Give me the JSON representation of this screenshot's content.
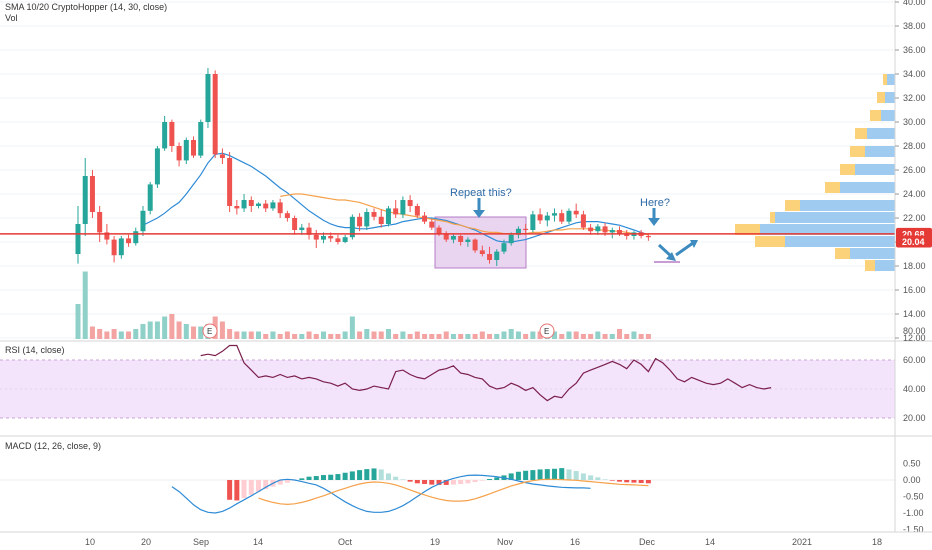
{
  "panes": {
    "price": {
      "title": "SMA 10/20 CryptoHopper (14, 30, close)",
      "subtitle": "Vol",
      "y_ticks": [
        "40.00",
        "38.00",
        "36.00",
        "34.00",
        "32.00",
        "30.00",
        "28.00",
        "26.00",
        "24.00",
        "22.00",
        "20.00",
        "18.00",
        "16.00",
        "14.00",
        "12.00"
      ],
      "price_tags": [
        "20.68",
        "20.04"
      ]
    },
    "rsi": {
      "title": "RSI (14, close)",
      "y_ticks": [
        "80.00",
        "60.00",
        "40.00",
        "20.00"
      ]
    },
    "macd": {
      "title": "MACD (12, 26, close, 9)",
      "y_ticks": [
        "0.50",
        "0.00",
        "-0.50",
        "-1.00",
        "-1.50"
      ]
    }
  },
  "x_ticks": [
    "10",
    "20",
    "Sep",
    "14",
    "Oct",
    "19",
    "Nov",
    "16",
    "Dec",
    "14",
    "2021",
    "18"
  ],
  "annotations": {
    "repeat": "Repeat this?",
    "here": "Here?",
    "earnings": "E"
  },
  "colors": {
    "up": "#26a69a",
    "down": "#ef5350",
    "sma_fast": "#2e8bd6",
    "sma_slow": "#f5a14a",
    "hline": "#e53935",
    "rsi": "#7b1f4c",
    "box": "#c37bd0",
    "arrow": "#3d8bbf"
  },
  "chart_data": [
    {
      "type": "candlestick",
      "title": "SMA 10/20 CryptoHopper (14, 30, close)",
      "ylim": [
        12,
        40
      ],
      "ohlc": [
        [
          19.0,
          23.0,
          18.2,
          21.5
        ],
        [
          21.5,
          27.0,
          20.5,
          25.5
        ],
        [
          25.5,
          26.0,
          22.0,
          22.5
        ],
        [
          22.5,
          23.0,
          20.0,
          20.8
        ],
        [
          20.8,
          21.5,
          19.8,
          20.2
        ],
        [
          20.2,
          20.5,
          18.3,
          18.9
        ],
        [
          18.9,
          20.5,
          18.6,
          20.3
        ],
        [
          20.3,
          20.6,
          19.6,
          19.9
        ],
        [
          19.9,
          21.2,
          19.7,
          20.9
        ],
        [
          20.9,
          23.0,
          20.5,
          22.6
        ],
        [
          22.6,
          25.0,
          22.3,
          24.8
        ],
        [
          24.8,
          28.0,
          24.5,
          27.8
        ],
        [
          27.8,
          30.5,
          27.6,
          30.0
        ],
        [
          30.0,
          30.2,
          27.5,
          28.0
        ],
        [
          28.0,
          28.3,
          26.3,
          26.8
        ],
        [
          26.8,
          28.7,
          26.5,
          28.5
        ],
        [
          28.5,
          28.8,
          27.0,
          27.2
        ],
        [
          27.2,
          30.2,
          27.0,
          30.0
        ],
        [
          30.0,
          34.5,
          29.5,
          34.0
        ],
        [
          34.0,
          34.3,
          27.0,
          27.3
        ],
        [
          27.3,
          27.8,
          26.5,
          27.0
        ],
        [
          27.0,
          27.5,
          22.5,
          23.0
        ],
        [
          23.0,
          23.5,
          22.3,
          22.8
        ],
        [
          22.8,
          24.0,
          22.5,
          23.5
        ],
        [
          23.5,
          23.8,
          22.5,
          23.0
        ],
        [
          23.0,
          23.3,
          22.8,
          23.2
        ],
        [
          23.2,
          23.5,
          22.5,
          22.8
        ],
        [
          22.8,
          23.5,
          22.6,
          23.3
        ],
        [
          23.3,
          23.6,
          22.0,
          22.4
        ],
        [
          22.4,
          22.6,
          21.7,
          22.0
        ],
        [
          22.0,
          22.2,
          20.6,
          21.0
        ],
        [
          21.0,
          21.5,
          20.6,
          21.2
        ],
        [
          21.2,
          21.6,
          20.2,
          20.6
        ],
        [
          20.6,
          21.0,
          19.5,
          20.2
        ],
        [
          20.2,
          20.8,
          19.9,
          20.5
        ],
        [
          20.5,
          20.8,
          20.0,
          20.3
        ],
        [
          20.3,
          20.6,
          19.8,
          20.0
        ],
        [
          20.0,
          20.6,
          19.9,
          20.4
        ],
        [
          20.4,
          22.3,
          20.2,
          22.1
        ],
        [
          22.1,
          22.4,
          20.9,
          21.3
        ],
        [
          21.3,
          22.8,
          21.0,
          22.5
        ],
        [
          22.5,
          22.8,
          21.8,
          22.1
        ],
        [
          22.1,
          22.7,
          21.2,
          21.5
        ],
        [
          21.5,
          23.0,
          21.3,
          22.8
        ],
        [
          22.8,
          23.5,
          22.0,
          22.3
        ],
        [
          22.3,
          23.8,
          22.0,
          23.5
        ],
        [
          23.5,
          23.9,
          22.5,
          23.0
        ],
        [
          23.0,
          23.2,
          22.0,
          22.2
        ],
        [
          22.2,
          22.5,
          21.5,
          21.7
        ],
        [
          21.7,
          21.9,
          21.0,
          21.2
        ],
        [
          21.2,
          21.4,
          20.5,
          20.7
        ],
        [
          20.7,
          20.9,
          20.0,
          20.2
        ],
        [
          20.2,
          20.7,
          19.9,
          20.5
        ],
        [
          20.5,
          20.6,
          19.7,
          20.0
        ],
        [
          20.0,
          20.4,
          19.6,
          20.2
        ],
        [
          20.2,
          20.3,
          19.1,
          19.3
        ],
        [
          19.3,
          19.7,
          18.8,
          19.0
        ],
        [
          19.0,
          19.6,
          18.2,
          18.5
        ],
        [
          18.5,
          19.4,
          18.0,
          19.2
        ],
        [
          19.2,
          20.2,
          19.0,
          19.9
        ],
        [
          19.9,
          20.8,
          19.7,
          20.6
        ],
        [
          20.6,
          21.3,
          20.3,
          21.1
        ],
        [
          21.1,
          21.5,
          20.6,
          21.0
        ],
        [
          21.0,
          22.6,
          20.8,
          22.3
        ],
        [
          22.3,
          22.8,
          21.5,
          21.8
        ],
        [
          21.8,
          22.5,
          21.3,
          22.2
        ],
        [
          22.2,
          22.8,
          21.7,
          22.4
        ],
        [
          22.4,
          22.7,
          21.5,
          21.7
        ],
        [
          21.7,
          22.8,
          21.5,
          22.6
        ],
        [
          22.6,
          23.2,
          22.0,
          22.3
        ],
        [
          22.3,
          22.6,
          21.0,
          21.2
        ],
        [
          21.2,
          21.5,
          20.6,
          20.9
        ],
        [
          20.9,
          21.5,
          20.6,
          21.3
        ],
        [
          21.3,
          21.6,
          20.5,
          20.8
        ],
        [
          20.8,
          21.2,
          20.3,
          21.0
        ],
        [
          21.0,
          21.3,
          20.5,
          20.7
        ],
        [
          20.7,
          21.0,
          20.2,
          20.5
        ],
        [
          20.5,
          20.9,
          20.2,
          20.8
        ],
        [
          20.8,
          21.0,
          20.3,
          20.5
        ],
        [
          20.5,
          20.7,
          20.1,
          20.4
        ]
      ],
      "volume": [
        14,
        27,
        5,
        4,
        3,
        4,
        3,
        3,
        4,
        6,
        7,
        7,
        9,
        10,
        7,
        6,
        5,
        5,
        6,
        9,
        7,
        4,
        3,
        3,
        3,
        3,
        2,
        3,
        2,
        3,
        2,
        2,
        3,
        2,
        3,
        2,
        2,
        3,
        9,
        3,
        4,
        3,
        3,
        4,
        2,
        3,
        2,
        3,
        2,
        2,
        2,
        3,
        2,
        2,
        2,
        2,
        3,
        2,
        2,
        3,
        4,
        3,
        2,
        3,
        3,
        4,
        3,
        2,
        3,
        3,
        2,
        2,
        3,
        2,
        2,
        4,
        2,
        3,
        2,
        2
      ],
      "series": [
        {
          "name": "",
          "values": [
            null,
            null,
            null,
            null,
            null,
            null,
            null,
            null,
            null,
            21.4,
            21.7,
            22.0,
            22.4,
            22.9,
            23.3,
            24.0,
            24.8,
            25.6,
            26.6,
            27.3,
            27.4,
            27.2,
            26.9,
            26.6,
            26.3,
            25.9,
            25.5,
            25.0,
            24.5,
            24.1,
            23.6,
            23.1,
            22.6,
            22.2,
            21.8,
            21.5,
            21.3,
            21.2,
            21.2,
            21.1,
            21.1,
            21.2,
            21.3,
            21.4,
            21.5,
            21.7,
            21.8,
            21.9,
            22.0,
            22.0,
            21.9,
            21.8,
            21.6,
            21.4,
            21.2,
            21.0,
            20.7,
            20.4,
            20.1,
            20.0,
            20.0,
            20.1,
            20.2,
            20.4,
            20.6,
            20.8,
            21.0,
            21.2,
            21.4,
            21.6,
            21.7,
            21.7,
            21.7,
            21.6,
            21.5,
            21.4,
            21.2,
            21.0,
            20.8,
            20.6
          ]
        },
        {
          "name": "",
          "values": [
            null,
            null,
            null,
            null,
            null,
            null,
            null,
            null,
            null,
            null,
            null,
            null,
            null,
            null,
            null,
            null,
            null,
            null,
            null,
            null,
            null,
            null,
            null,
            null,
            null,
            null,
            null,
            null,
            23.8,
            23.9,
            24.0,
            24.0,
            23.9,
            23.8,
            23.7,
            23.6,
            23.5,
            23.5,
            23.4,
            23.3,
            23.1,
            22.9,
            22.7,
            22.5,
            22.4,
            22.3,
            22.2,
            22.1,
            22.0,
            21.9,
            21.8,
            21.7,
            21.5,
            21.4,
            21.2,
            21.1,
            20.9,
            20.8,
            20.8,
            20.7,
            20.7,
            20.7,
            20.7,
            20.8,
            20.8,
            20.9,
            21.0,
            21.0,
            21.1,
            21.1,
            21.1,
            21.1,
            21.0,
            21.0,
            20.9,
            20.9,
            20.8,
            20.7,
            20.7,
            20.6
          ]
        }
      ],
      "hlines": [
        20.68,
        20.04
      ]
    },
    {
      "type": "line",
      "title": "RSI (14, close)",
      "ylim": [
        20,
        80
      ],
      "band": [
        30,
        70
      ],
      "x_start": 17,
      "series": [
        {
          "name": "",
          "values": [
            63,
            64,
            63,
            66,
            70,
            70,
            58,
            53,
            48,
            49,
            48,
            50,
            48,
            49,
            47,
            48,
            47,
            45,
            44,
            42,
            44,
            40,
            39,
            40,
            42,
            41,
            40,
            52,
            53,
            50,
            48,
            47,
            50,
            53,
            54,
            56,
            51,
            50,
            48,
            47,
            42,
            40,
            41,
            44,
            42,
            39,
            41,
            36,
            32,
            35,
            34,
            40,
            44,
            51,
            53,
            55,
            57,
            59,
            57,
            54,
            60,
            57,
            52,
            61,
            58,
            53,
            47,
            45,
            48,
            46,
            44,
            43,
            44,
            47,
            44,
            41,
            43,
            41,
            40,
            41
          ]
        }
      ]
    },
    {
      "type": "bar",
      "title": "MACD (12, 26, close, 9)",
      "ylim": [
        -1.7,
        0.7
      ],
      "x_start": 21,
      "series": [
        {
          "name": "",
          "values": [
            -0.6,
            -0.62,
            -0.55,
            -0.45,
            -0.35,
            -0.27,
            -0.2,
            -0.14,
            -0.08,
            -0.02,
            0.05,
            0.1,
            0.12,
            0.15,
            0.16,
            0.18,
            0.22,
            0.26,
            0.3,
            0.33,
            0.35,
            0.32,
            0.2,
            0.1,
            0.02,
            -0.05,
            -0.1,
            -0.12,
            -0.14,
            -0.15,
            -0.15,
            -0.14,
            -0.12,
            -0.1,
            -0.06,
            -0.02,
            0.03,
            0.08,
            0.14,
            0.2,
            0.25,
            0.28,
            0.3,
            0.32,
            0.33,
            0.34,
            0.36,
            0.32,
            0.27,
            0.2,
            0.14,
            0.08,
            0.02,
            -0.02,
            -0.05,
            -0.07,
            -0.08,
            -0.09,
            -0.1
          ]
        },
        {
          "name": "",
          "values": [
            -0.2,
            -0.35,
            -0.55,
            -0.75,
            -0.9,
            -0.98,
            -1.0,
            -0.95,
            -0.85,
            -0.72,
            -0.6,
            -0.48,
            -0.35,
            -0.22,
            -0.1,
            0.0,
            0.02,
            0.0,
            -0.05,
            -0.1,
            -0.15,
            -0.25,
            -0.38,
            -0.52,
            -0.66,
            -0.78,
            -0.88,
            -0.95,
            -0.98,
            -0.98,
            -0.95,
            -0.88,
            -0.78,
            -0.65,
            -0.5,
            -0.35,
            -0.22,
            -0.12,
            -0.02,
            0.05,
            0.1,
            0.14,
            0.15,
            0.14,
            0.12,
            0.1,
            0.06,
            0.02,
            -0.03,
            -0.08,
            -0.12,
            -0.15,
            -0.18,
            -0.2,
            -0.22,
            -0.23,
            -0.24,
            -0.24,
            -0.25
          ]
        },
        {
          "name": "",
          "values": [
            null,
            null,
            null,
            null,
            -0.55,
            -0.62,
            -0.68,
            -0.72,
            -0.74,
            -0.72,
            -0.68,
            -0.62,
            -0.55,
            -0.48,
            -0.4,
            -0.32,
            -0.25,
            -0.18,
            -0.12,
            -0.08,
            -0.06,
            -0.07,
            -0.1,
            -0.15,
            -0.22,
            -0.3,
            -0.38,
            -0.45,
            -0.52,
            -0.58,
            -0.62,
            -0.64,
            -0.64,
            -0.62,
            -0.57,
            -0.5,
            -0.42,
            -0.34,
            -0.26,
            -0.18,
            -0.12,
            -0.06,
            -0.02,
            0.01,
            0.02,
            0.02,
            0.01,
            0.0,
            -0.01,
            -0.03,
            -0.05,
            -0.07,
            -0.09,
            -0.11,
            -0.13,
            -0.14,
            -0.15,
            -0.16,
            -0.17
          ]
        }
      ]
    }
  ]
}
